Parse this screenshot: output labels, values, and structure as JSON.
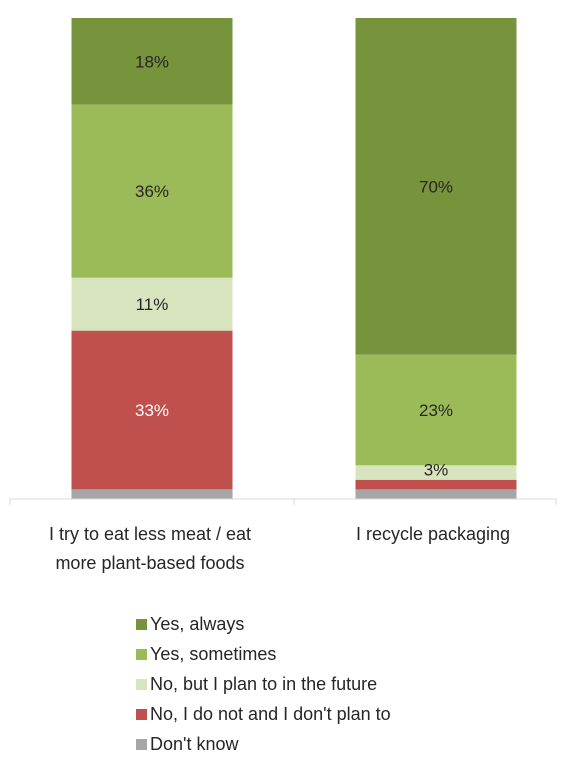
{
  "chart_data": {
    "type": "bar",
    "stacked": true,
    "normalized": true,
    "categories": [
      "I try to eat less meat / eat more plant-based foods",
      "I recycle packaging"
    ],
    "category_label_lines": [
      [
        "I try to eat less meat / eat",
        "more plant-based foods"
      ],
      [
        "I recycle packaging"
      ]
    ],
    "series": [
      {
        "name": "Yes, always",
        "color": "#77933c",
        "values": [
          18,
          70
        ],
        "labels": [
          "18%",
          "70%"
        ]
      },
      {
        "name": "Yes, sometimes",
        "color": "#9bbb59",
        "values": [
          36,
          23
        ],
        "labels": [
          "36%",
          "23%"
        ]
      },
      {
        "name": "No, but I plan to in the future",
        "color": "#d7e4bd",
        "values": [
          11,
          3
        ],
        "labels": [
          "11%",
          "3%"
        ]
      },
      {
        "name": "No, I do not and I don't plan to",
        "color": "#c0504d",
        "values": [
          33,
          2
        ],
        "labels": [
          "33%",
          ""
        ]
      },
      {
        "name": "Don't know",
        "color": "#a6a6a6",
        "values": [
          2,
          2
        ],
        "labels": [
          "",
          ""
        ]
      }
    ],
    "ylim": [
      0,
      100
    ],
    "grid": false,
    "legend_position": "bottom"
  }
}
